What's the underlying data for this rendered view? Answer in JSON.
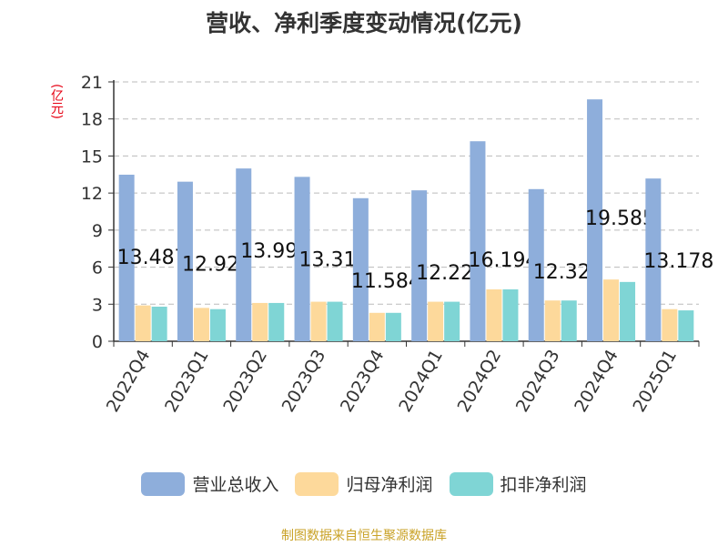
{
  "chart_data": {
    "type": "bar",
    "title": "营收、净利季度变动情况(亿元)",
    "unit_label": "(亿元)",
    "categories": [
      "2022Q4",
      "2023Q1",
      "2023Q2",
      "2023Q3",
      "2023Q4",
      "2024Q1",
      "2024Q2",
      "2024Q3",
      "2024Q4",
      "2025Q1"
    ],
    "series": [
      {
        "name": "营业总收入",
        "color": "#8eaedb",
        "values": [
          13.487,
          12.92,
          13.99,
          13.31,
          11.584,
          12.22,
          16.194,
          12.32,
          19.585,
          13.178
        ]
      },
      {
        "name": "归母净利润",
        "color": "#fdd99b",
        "values": [
          2.9,
          2.7,
          3.1,
          3.2,
          2.3,
          3.2,
          4.2,
          3.3,
          5.0,
          2.6
        ]
      },
      {
        "name": "扣非净利润",
        "color": "#7fd5d5",
        "values": [
          2.8,
          2.6,
          3.1,
          3.2,
          2.3,
          3.2,
          4.2,
          3.3,
          4.8,
          2.5
        ]
      }
    ],
    "data_labels": [
      "13.487",
      "12.92",
      "13.99",
      "13.31",
      "11.584",
      "12.22",
      "16.194",
      "12.32",
      "19.585",
      "13.178"
    ],
    "ylim": [
      0,
      21
    ],
    "yticks": [
      "0",
      "3",
      "6",
      "9",
      "12",
      "15",
      "18",
      "21"
    ],
    "grid": true,
    "legend_position": "bottom"
  },
  "source_text": "制图数据来自恒生聚源数据库"
}
